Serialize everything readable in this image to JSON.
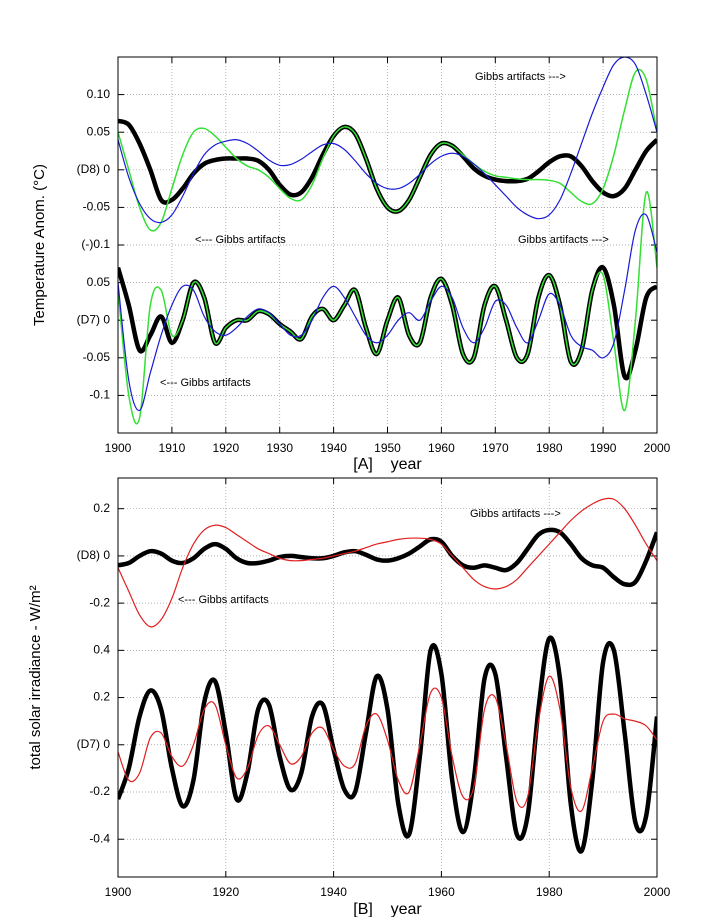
{
  "chart_data": [
    {
      "type": "line",
      "x_label": "[A]    year",
      "y_label": "Temperature Anom. (°C)",
      "xlim": [
        1900,
        2000
      ],
      "xticks": [
        1900,
        1910,
        1920,
        1930,
        1940,
        1950,
        1960,
        1970,
        1980,
        1990,
        2000
      ],
      "ylim": [
        -0.35,
        0.15
      ],
      "yticks": [
        {
          "value": 0.1,
          "label": "0.10"
        },
        0.05,
        {
          "value": 0,
          "label": "(D8) 0"
        },
        -0.05,
        {
          "value": -0.1,
          "label": "(-)0.1"
        },
        {
          "value": -0.15,
          "label": "0.05"
        },
        {
          "value": -0.2,
          "label": "(D7) 0"
        },
        {
          "value": -0.25,
          "label": "-0.05"
        },
        {
          "value": -0.3,
          "label": "-0.1"
        }
      ],
      "grid": true,
      "annotations": [
        "Gibbs artifacts --->",
        "<--- Gibbs artifacts",
        "Gibbs artifacts --->",
        "<--- Gibbs artifacts"
      ],
      "x": [
        1900,
        1902,
        1904,
        1906,
        1908,
        1910,
        1912,
        1914,
        1916,
        1918,
        1920,
        1922,
        1924,
        1926,
        1928,
        1930,
        1932,
        1934,
        1936,
        1938,
        1940,
        1942,
        1944,
        1946,
        1948,
        1950,
        1952,
        1954,
        1956,
        1958,
        1960,
        1962,
        1964,
        1966,
        1968,
        1970,
        1972,
        1974,
        1976,
        1978,
        1980,
        1982,
        1984,
        1986,
        1988,
        1990,
        1992,
        1994,
        1996,
        1998,
        2000
      ],
      "series": [
        {
          "color": "#000000",
          "line_width": 4.5,
          "values": [
            0.065,
            0.06,
            0.035,
            0.0,
            -0.04,
            -0.04,
            -0.025,
            -0.005,
            0.008,
            0.013,
            0.015,
            0.015,
            0.015,
            0.012,
            0.0,
            -0.02,
            -0.033,
            -0.03,
            -0.01,
            0.02,
            0.045,
            0.057,
            0.048,
            0.015,
            -0.025,
            -0.05,
            -0.055,
            -0.04,
            -0.01,
            0.02,
            0.035,
            0.032,
            0.018,
            0.002,
            -0.008,
            -0.013,
            -0.015,
            -0.015,
            -0.012,
            -0.002,
            0.01,
            0.018,
            0.018,
            0.005,
            -0.015,
            -0.03,
            -0.035,
            -0.025,
            0.0,
            0.025,
            0.04
          ]
        },
        {
          "color": "#000000",
          "line_width": 4.5,
          "values": [
            -0.13,
            -0.18,
            -0.24,
            -0.22,
            -0.195,
            -0.23,
            -0.2,
            -0.15,
            -0.17,
            -0.23,
            -0.21,
            -0.2,
            -0.2,
            -0.188,
            -0.192,
            -0.205,
            -0.215,
            -0.225,
            -0.195,
            -0.185,
            -0.2,
            -0.18,
            -0.16,
            -0.21,
            -0.245,
            -0.2,
            -0.17,
            -0.22,
            -0.23,
            -0.17,
            -0.145,
            -0.18,
            -0.245,
            -0.25,
            -0.18,
            -0.155,
            -0.2,
            -0.25,
            -0.245,
            -0.17,
            -0.14,
            -0.18,
            -0.255,
            -0.24,
            -0.16,
            -0.13,
            -0.18,
            -0.275,
            -0.24,
            -0.17,
            -0.155
          ]
        },
        {
          "color": "#33e033",
          "line_width": 1.5,
          "values": [
            0.05,
            0.0,
            -0.05,
            -0.08,
            -0.07,
            -0.025,
            0.02,
            0.05,
            0.055,
            0.045,
            0.03,
            0.015,
            0.005,
            0.0,
            -0.01,
            -0.025,
            -0.038,
            -0.04,
            -0.02,
            0.015,
            0.045,
            0.057,
            0.048,
            0.015,
            -0.025,
            -0.05,
            -0.055,
            -0.04,
            -0.01,
            0.02,
            0.035,
            0.032,
            0.02,
            0.008,
            -0.002,
            -0.008,
            -0.01,
            -0.012,
            -0.013,
            -0.013,
            -0.014,
            -0.018,
            -0.03,
            -0.042,
            -0.045,
            -0.025,
            0.02,
            0.08,
            0.13,
            0.12,
            0.05
          ]
        },
        {
          "color": "#33e033",
          "line_width": 1.5,
          "values": [
            -0.16,
            -0.3,
            -0.33,
            -0.18,
            -0.16,
            -0.22,
            -0.2,
            -0.15,
            -0.17,
            -0.23,
            -0.21,
            -0.2,
            -0.2,
            -0.188,
            -0.192,
            -0.205,
            -0.215,
            -0.225,
            -0.195,
            -0.185,
            -0.2,
            -0.18,
            -0.16,
            -0.21,
            -0.245,
            -0.2,
            -0.17,
            -0.22,
            -0.23,
            -0.17,
            -0.145,
            -0.18,
            -0.245,
            -0.25,
            -0.18,
            -0.155,
            -0.2,
            -0.25,
            -0.245,
            -0.17,
            -0.14,
            -0.18,
            -0.255,
            -0.24,
            -0.16,
            -0.14,
            -0.23,
            -0.32,
            -0.2,
            -0.03,
            -0.13
          ]
        },
        {
          "color": "#1a1ad6",
          "line_width": 1.2,
          "values": [
            0.04,
            -0.01,
            -0.045,
            -0.065,
            -0.07,
            -0.06,
            -0.035,
            -0.005,
            0.02,
            0.033,
            0.038,
            0.04,
            0.035,
            0.025,
            0.013,
            0.006,
            0.007,
            0.014,
            0.024,
            0.033,
            0.035,
            0.027,
            0.012,
            -0.005,
            -0.018,
            -0.025,
            -0.025,
            -0.018,
            -0.006,
            0.008,
            0.018,
            0.022,
            0.018,
            0.008,
            -0.005,
            -0.02,
            -0.035,
            -0.05,
            -0.06,
            -0.065,
            -0.06,
            -0.04,
            -0.005,
            0.035,
            0.075,
            0.11,
            0.14,
            0.15,
            0.14,
            0.1,
            0.05
          ]
        },
        {
          "color": "#1a1ad6",
          "line_width": 1.2,
          "values": [
            -0.15,
            -0.28,
            -0.32,
            -0.27,
            -0.22,
            -0.18,
            -0.155,
            -0.16,
            -0.195,
            -0.215,
            -0.22,
            -0.21,
            -0.195,
            -0.185,
            -0.19,
            -0.205,
            -0.22,
            -0.22,
            -0.2,
            -0.17,
            -0.155,
            -0.17,
            -0.195,
            -0.22,
            -0.23,
            -0.22,
            -0.2,
            -0.19,
            -0.2,
            -0.175,
            -0.155,
            -0.17,
            -0.21,
            -0.23,
            -0.21,
            -0.175,
            -0.18,
            -0.21,
            -0.23,
            -0.2,
            -0.165,
            -0.18,
            -0.22,
            -0.235,
            -0.24,
            -0.25,
            -0.23,
            -0.16,
            -0.08,
            -0.06,
            -0.11
          ]
        }
      ]
    },
    {
      "type": "line",
      "x_label": "[B]    year",
      "y_label": "total solar irradiance - W/m²",
      "xlim": [
        1900,
        2000
      ],
      "xticks": [
        1900,
        1920,
        1940,
        1960,
        1980,
        2000
      ],
      "ylim": [
        -1.36,
        0.33
      ],
      "yticks": [
        0.2,
        {
          "value": 0,
          "label": "(D8) 0"
        },
        -0.2,
        {
          "value": -0.4,
          "label": "0.4"
        },
        {
          "value": -0.6,
          "label": "0.2"
        },
        {
          "value": -0.8,
          "label": "(D7) 0"
        },
        {
          "value": -1.0,
          "label": "-0.2"
        },
        {
          "value": -1.2,
          "label": "-0.4"
        }
      ],
      "grid": true,
      "annotations": [
        "Gibbs artifacts --->",
        "<--- Gibbs artifacts"
      ],
      "x": [
        1900,
        1902,
        1904,
        1906,
        1908,
        1910,
        1912,
        1914,
        1916,
        1918,
        1920,
        1922,
        1924,
        1926,
        1928,
        1930,
        1932,
        1934,
        1936,
        1938,
        1940,
        1942,
        1944,
        1946,
        1948,
        1950,
        1952,
        1954,
        1956,
        1958,
        1960,
        1962,
        1964,
        1966,
        1968,
        1970,
        1972,
        1974,
        1976,
        1978,
        1980,
        1982,
        1984,
        1986,
        1988,
        1990,
        1992,
        1994,
        1996,
        1998,
        2000
      ],
      "series": [
        {
          "color": "#000000",
          "line_width": 4.5,
          "values": [
            -0.04,
            -0.03,
            0.0,
            0.02,
            0.01,
            -0.02,
            -0.03,
            -0.01,
            0.03,
            0.05,
            0.03,
            -0.01,
            -0.03,
            -0.03,
            -0.02,
            -0.005,
            0.0,
            -0.005,
            -0.01,
            -0.01,
            0.0,
            0.015,
            0.02,
            0.005,
            -0.015,
            -0.02,
            -0.01,
            0.01,
            0.04,
            0.07,
            0.06,
            0.0,
            -0.04,
            -0.05,
            -0.04,
            -0.05,
            -0.06,
            -0.03,
            0.03,
            0.09,
            0.11,
            0.1,
            0.05,
            -0.01,
            -0.04,
            -0.05,
            -0.09,
            -0.12,
            -0.11,
            -0.02,
            0.1
          ]
        },
        {
          "color": "#000000",
          "line_width": 4.5,
          "values": [
            -1.03,
            -0.9,
            -0.68,
            -0.57,
            -0.65,
            -0.9,
            -1.06,
            -0.95,
            -0.62,
            -0.53,
            -0.75,
            -1.03,
            -0.92,
            -0.65,
            -0.63,
            -0.85,
            -0.99,
            -0.92,
            -0.68,
            -0.63,
            -0.82,
            -0.99,
            -1.0,
            -0.75,
            -0.51,
            -0.65,
            -1.05,
            -1.18,
            -0.85,
            -0.4,
            -0.5,
            -0.95,
            -1.17,
            -0.95,
            -0.52,
            -0.5,
            -0.85,
            -1.18,
            -1.1,
            -0.65,
            -0.35,
            -0.52,
            -1.05,
            -1.25,
            -0.95,
            -0.45,
            -0.4,
            -0.75,
            -1.13,
            -1.1,
            -0.68
          ]
        },
        {
          "color": "#e02020",
          "line_width": 1.2,
          "values": [
            -0.05,
            -0.15,
            -0.25,
            -0.3,
            -0.27,
            -0.18,
            -0.05,
            0.05,
            0.11,
            0.13,
            0.12,
            0.09,
            0.06,
            0.03,
            0.01,
            -0.01,
            -0.02,
            -0.02,
            -0.015,
            -0.01,
            0.0,
            0.01,
            0.02,
            0.035,
            0.05,
            0.06,
            0.07,
            0.075,
            0.075,
            0.07,
            0.05,
            0.0,
            -0.05,
            -0.1,
            -0.13,
            -0.14,
            -0.13,
            -0.1,
            -0.05,
            0.0,
            0.05,
            0.1,
            0.15,
            0.19,
            0.22,
            0.24,
            0.24,
            0.2,
            0.13,
            0.05,
            -0.02
          ]
        },
        {
          "color": "#e02020",
          "line_width": 1.2,
          "values": [
            -0.83,
            -0.95,
            -0.92,
            -0.77,
            -0.75,
            -0.85,
            -0.89,
            -0.8,
            -0.65,
            -0.63,
            -0.8,
            -0.94,
            -0.9,
            -0.76,
            -0.72,
            -0.8,
            -0.88,
            -0.85,
            -0.75,
            -0.73,
            -0.82,
            -0.89,
            -0.88,
            -0.72,
            -0.67,
            -0.78,
            -0.95,
            -1.0,
            -0.8,
            -0.58,
            -0.6,
            -0.85,
            -1.02,
            -0.98,
            -0.65,
            -0.6,
            -0.8,
            -1.04,
            -1.02,
            -0.7,
            -0.51,
            -0.65,
            -0.98,
            -1.08,
            -0.9,
            -0.7,
            -0.67,
            -0.69,
            -0.7,
            -0.72,
            -0.78
          ]
        }
      ]
    }
  ]
}
